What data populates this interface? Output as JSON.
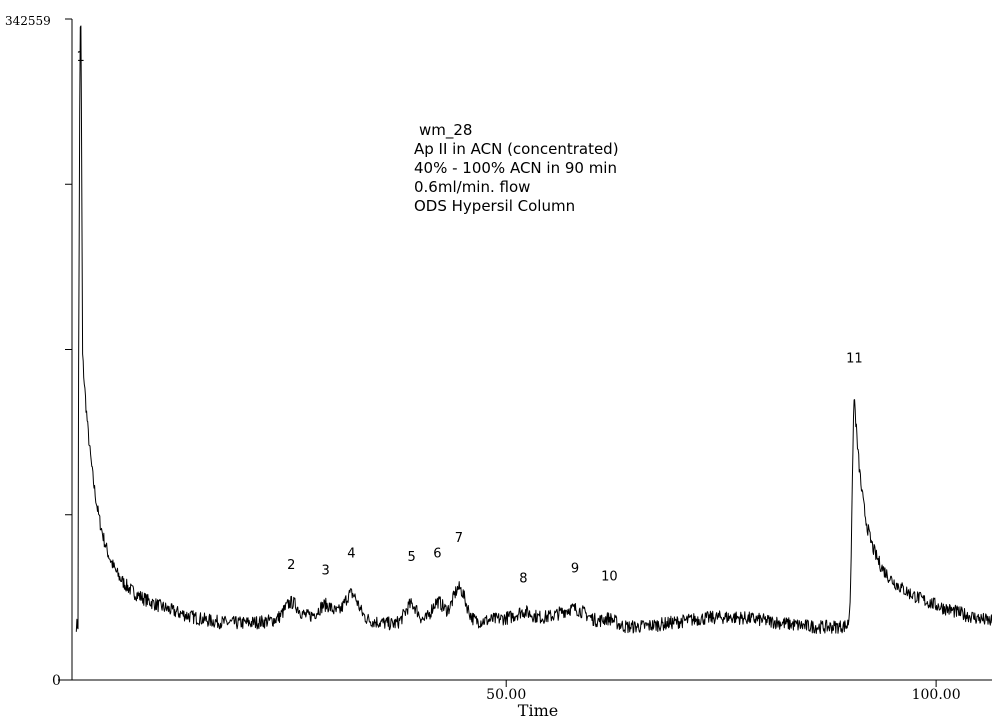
{
  "chart_data": {
    "type": "line",
    "title": "",
    "xlabel": "Time",
    "ylabel": "",
    "xlim": [
      -0.5,
      106.5
    ],
    "ylim": [
      0,
      342559
    ],
    "y_max_label": "342559",
    "y_zero_label": "0",
    "x_tick_labels": [
      {
        "value": 50,
        "label": "50.00"
      },
      {
        "value": 100,
        "label": "100.00"
      }
    ],
    "annotation_lines": [
      "wm_28",
      "Ap II in ACN (concentrated)",
      "40% - 100% ACN in 90 min",
      "0.6ml/min. flow",
      "ODS Hypersil Column"
    ],
    "peaks": [
      {
        "label": "1",
        "time": 0.5,
        "height": 342000
      },
      {
        "label": "2",
        "time": 25.0,
        "height": 41000
      },
      {
        "label": "3",
        "time": 29.0,
        "height": 38000
      },
      {
        "label": "4",
        "time": 32.0,
        "height": 47000
      },
      {
        "label": "5",
        "time": 39.0,
        "height": 45000
      },
      {
        "label": "6",
        "time": 42.0,
        "height": 47000
      },
      {
        "label": "7",
        "time": 44.5,
        "height": 55000
      },
      {
        "label": "8",
        "time": 52.0,
        "height": 34000
      },
      {
        "label": "9",
        "time": 58.0,
        "height": 39000
      },
      {
        "label": "10",
        "time": 62.0,
        "height": 35000
      },
      {
        "label": "11",
        "time": 90.5,
        "height": 148000
      }
    ],
    "baseline": 30000,
    "grid": false
  }
}
